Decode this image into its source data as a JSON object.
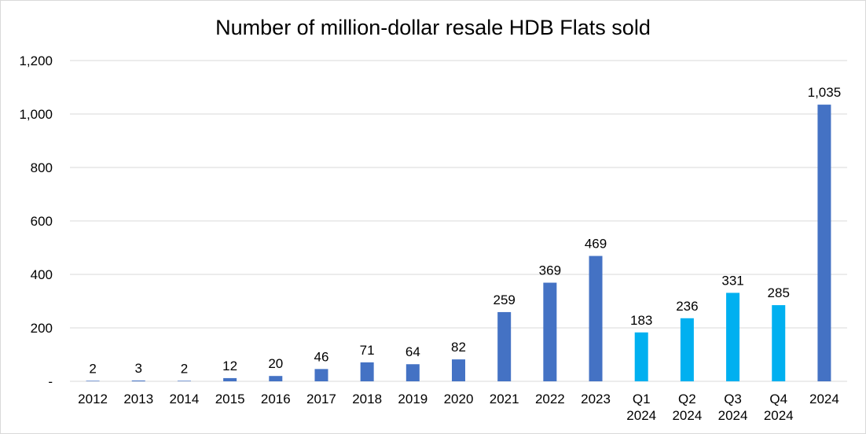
{
  "chart_data": {
    "type": "bar",
    "title": "Number of million-dollar resale HDB Flats sold",
    "xlabel": "",
    "ylabel": "",
    "ylim": [
      0,
      1200
    ],
    "yticks": [
      {
        "value": 0,
        "label": "-"
      },
      {
        "value": 200,
        "label": "200"
      },
      {
        "value": 400,
        "label": "400"
      },
      {
        "value": 600,
        "label": "600"
      },
      {
        "value": 800,
        "label": "800"
      },
      {
        "value": 1000,
        "label": "1,000"
      },
      {
        "value": 1200,
        "label": "1,200"
      }
    ],
    "grid": true,
    "legend": "none",
    "colors": {
      "annual": "#4472c4",
      "quarterly": "#00b0f0",
      "grid": "#d9d9d9"
    },
    "categories": [
      [
        "2012"
      ],
      [
        "2013"
      ],
      [
        "2014"
      ],
      [
        "2015"
      ],
      [
        "2016"
      ],
      [
        "2017"
      ],
      [
        "2018"
      ],
      [
        "2019"
      ],
      [
        "2020"
      ],
      [
        "2021"
      ],
      [
        "2022"
      ],
      [
        "2023"
      ],
      [
        "Q1",
        "2024"
      ],
      [
        "Q2",
        "2024"
      ],
      [
        "Q3",
        "2024"
      ],
      [
        "Q4",
        "2024"
      ],
      [
        "2024"
      ]
    ],
    "values": [
      2,
      3,
      2,
      12,
      20,
      46,
      71,
      64,
      82,
      259,
      369,
      469,
      183,
      236,
      331,
      285,
      1035
    ],
    "value_labels": [
      "2",
      "3",
      "2",
      "12",
      "20",
      "46",
      "71",
      "64",
      "82",
      "259",
      "369",
      "469",
      "183",
      "236",
      "331",
      "285",
      "1,035"
    ],
    "bar_kind": [
      "annual",
      "annual",
      "annual",
      "annual",
      "annual",
      "annual",
      "annual",
      "annual",
      "annual",
      "annual",
      "annual",
      "annual",
      "quarterly",
      "quarterly",
      "quarterly",
      "quarterly",
      "annual"
    ]
  }
}
